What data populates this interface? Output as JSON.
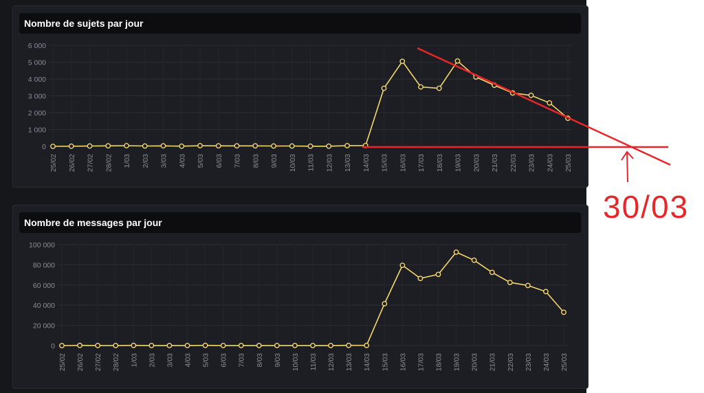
{
  "chart_data": [
    {
      "type": "line",
      "title": "Nombre de sujets par jour",
      "categories": [
        "25/02",
        "26/02",
        "27/02",
        "28/02",
        "1/03",
        "2/03",
        "3/03",
        "4/03",
        "5/03",
        "6/03",
        "7/03",
        "8/03",
        "9/03",
        "10/03",
        "11/03",
        "12/03",
        "13/03",
        "14/03",
        "15/03",
        "16/03",
        "17/03",
        "18/03",
        "19/03",
        "20/03",
        "21/03",
        "22/03",
        "23/03",
        "24/03",
        "25/03"
      ],
      "series": [
        {
          "values": [
            0,
            10,
            20,
            30,
            40,
            20,
            30,
            10,
            40,
            30,
            30,
            30,
            20,
            20,
            10,
            10,
            40,
            50,
            3450,
            5050,
            3530,
            3450,
            5070,
            4120,
            3630,
            3170,
            3030,
            2580,
            1670
          ]
        }
      ],
      "yticks": [
        "0",
        "1 000",
        "2 000",
        "3 000",
        "4 000",
        "5 000",
        "6 000"
      ],
      "ylim": [
        0,
        6000
      ],
      "grid": true,
      "color": "#f5d76e"
    },
    {
      "type": "line",
      "title": "Nombre de messages par jour",
      "categories": [
        "25/02",
        "26/02",
        "27/02",
        "28/02",
        "1/03",
        "2/03",
        "3/03",
        "4/03",
        "5/03",
        "6/03",
        "7/03",
        "8/03",
        "9/03",
        "10/03",
        "11/03",
        "12/03",
        "13/03",
        "14/03",
        "15/03",
        "16/03",
        "17/03",
        "18/03",
        "19/03",
        "20/03",
        "21/03",
        "22/03",
        "23/03",
        "24/03",
        "25/03"
      ],
      "series": [
        {
          "values": [
            0,
            200,
            100,
            100,
            200,
            100,
            100,
            100,
            200,
            100,
            100,
            100,
            100,
            100,
            100,
            100,
            200,
            200,
            41500,
            79500,
            66500,
            70500,
            92500,
            84500,
            72500,
            62500,
            59500,
            53500,
            33000
          ]
        }
      ],
      "yticks": [
        "0",
        "20 000",
        "40 000",
        "60 000",
        "80 000",
        "100 000"
      ],
      "ylim": [
        0,
        100000
      ],
      "grid": true,
      "color": "#f5d76e"
    }
  ],
  "annotation": {
    "text": "30/03",
    "color": "#e8262a"
  }
}
